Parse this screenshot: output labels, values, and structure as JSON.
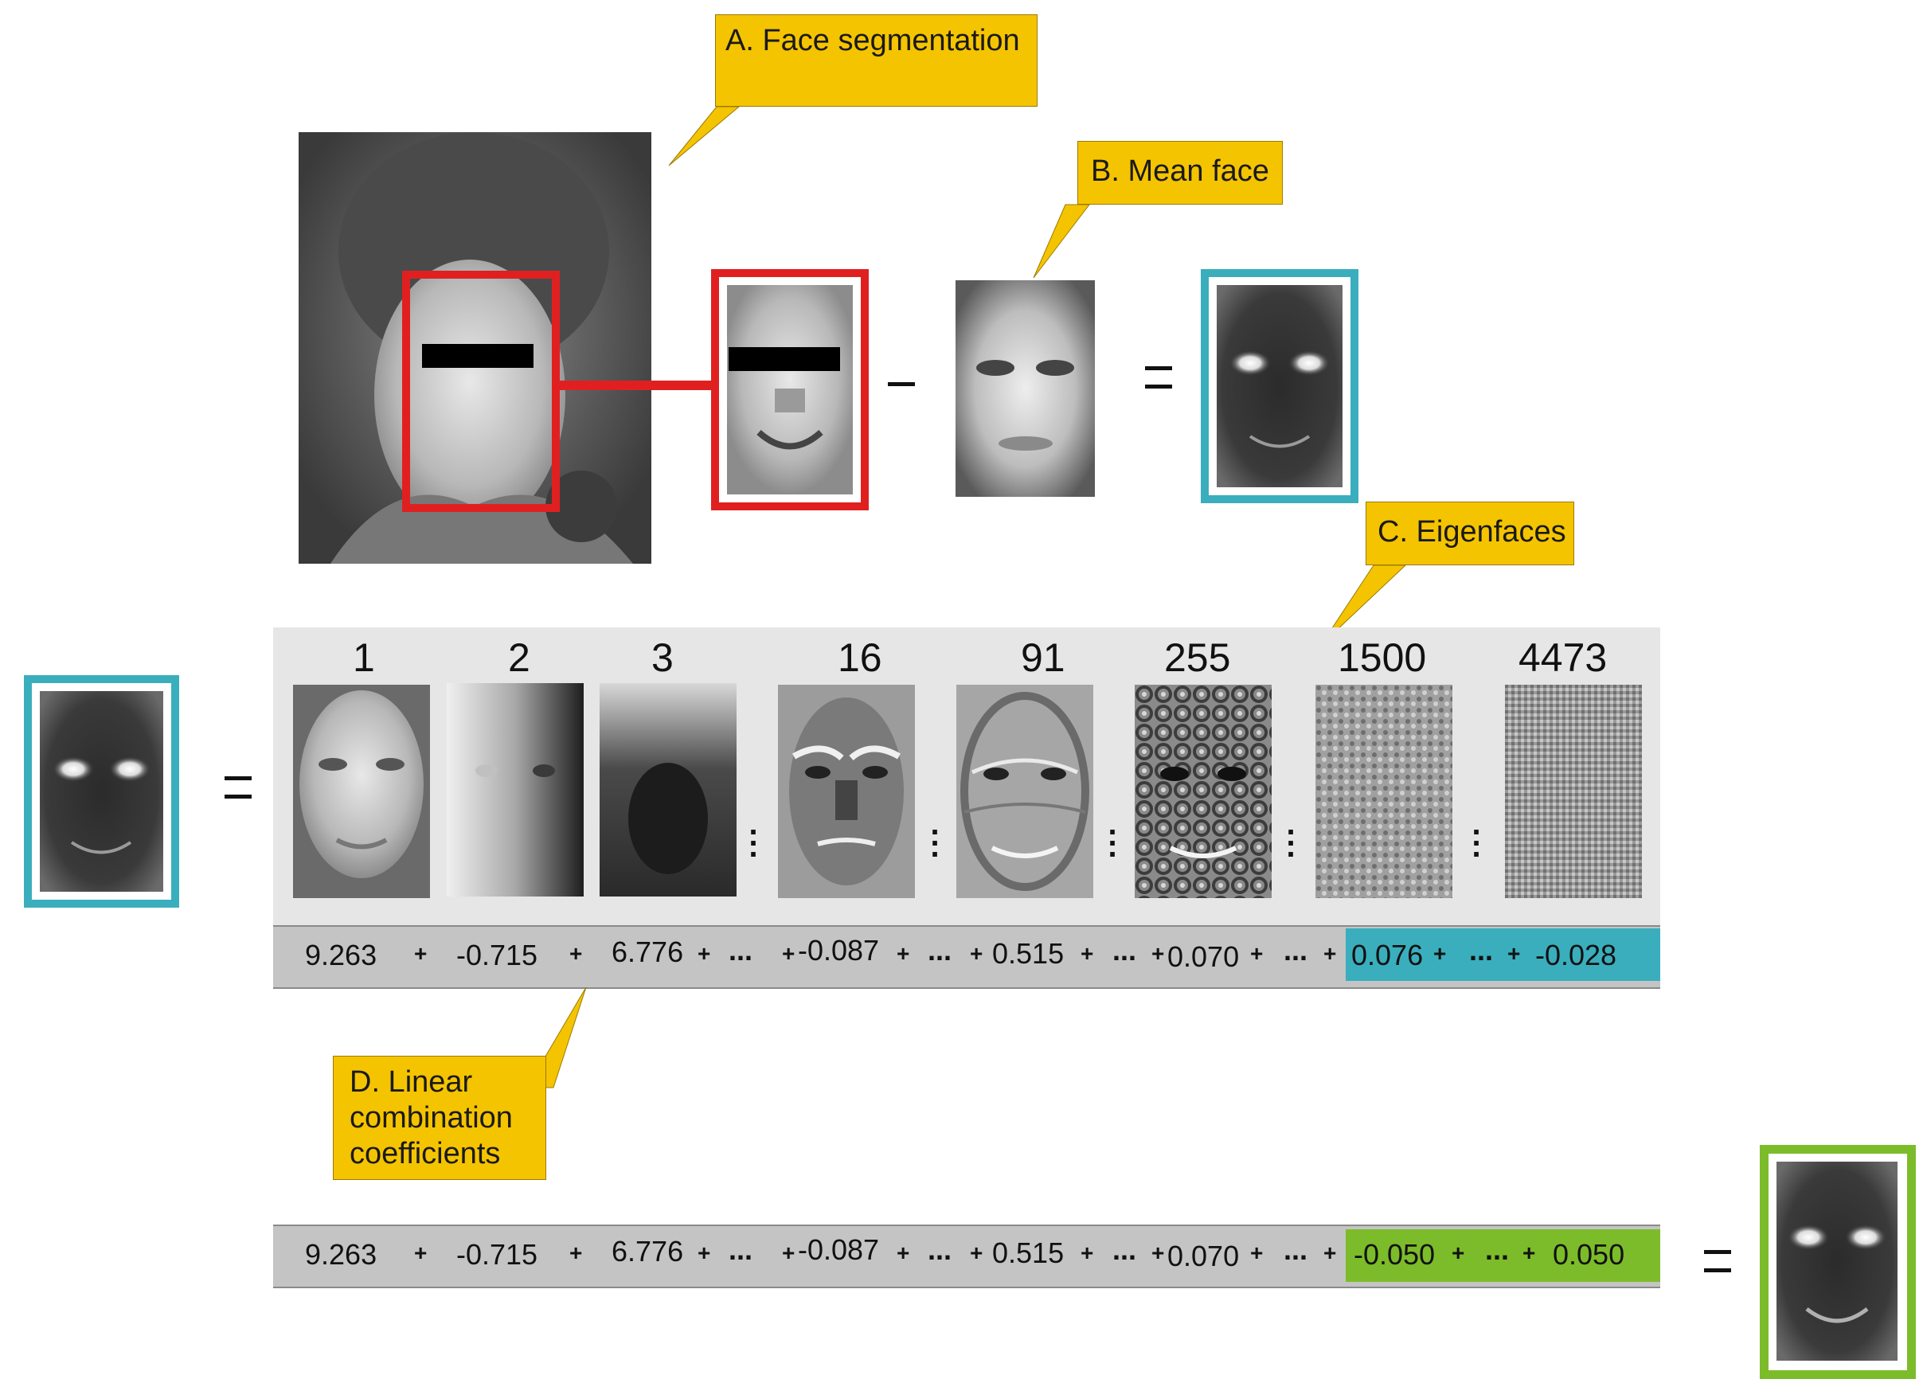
{
  "callouts": {
    "face_segmentation": "A. Face segmentation",
    "mean_face": "B. Mean face",
    "eigenfaces": "C. Eigenfaces",
    "linear_coefficients": "D. Linear combination coefficients"
  },
  "operators": {
    "minus": "–",
    "dots": "...",
    "plus": "+"
  },
  "eigenface_indices": [
    "1",
    "2",
    "3",
    "16",
    "91",
    "255",
    "1500",
    "4473"
  ],
  "coefficients_row1": [
    "9.263",
    "-0.715",
    "6.776",
    "-0.087",
    "0.515",
    "0.070",
    "0.076",
    "-0.028"
  ],
  "coefficients_row2": [
    "9.263",
    "-0.715",
    "6.776",
    "-0.087",
    "0.515",
    "0.070",
    "-0.050",
    "0.050"
  ],
  "colors": {
    "callout": "#f5c400",
    "segmentation_box": "#e02020",
    "normalized_frame": "#3aaebd",
    "reconstruction_frame": "#7cbc2a",
    "panel_bg": "#e6e6e6",
    "coef_bar": "#c4c4c4"
  },
  "icons": [
    "face-photo",
    "segmented-face",
    "mean-face",
    "normalized-face",
    "eigenface-image",
    "reconstructed-face"
  ]
}
